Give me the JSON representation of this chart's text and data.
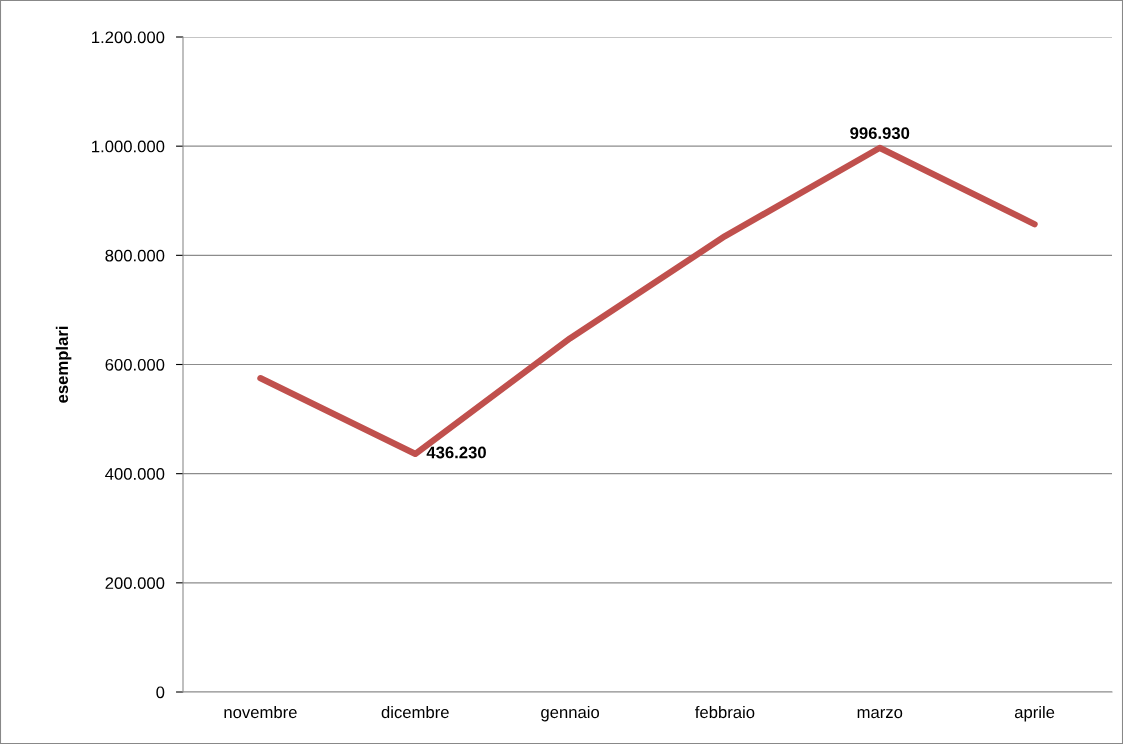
{
  "chart_data": {
    "type": "line",
    "ylabel": "esemplari",
    "categories": [
      "novembre",
      "dicembre",
      "gennaio",
      "febbraio",
      "marzo",
      "aprile"
    ],
    "series": [
      {
        "color": "#c0504d",
        "values": [
          575000,
          436230,
          648000,
          835000,
          996930,
          857000
        ],
        "value_labels": [
          null,
          "436.230",
          null,
          null,
          "996.930",
          null
        ]
      }
    ],
    "ylim": [
      0,
      1200000
    ],
    "yticks": [
      {
        "value": 0,
        "label": "0"
      },
      {
        "value": 200000,
        "label": "200.000"
      },
      {
        "value": 400000,
        "label": "400.000"
      },
      {
        "value": 600000,
        "label": "600.000"
      },
      {
        "value": 800000,
        "label": "800.000"
      },
      {
        "value": 1000000,
        "label": "1.000.000"
      },
      {
        "value": 1200000,
        "label": "1.200.000"
      }
    ],
    "grid": "y",
    "legend": false,
    "marker": "none",
    "line_style": "solid"
  }
}
